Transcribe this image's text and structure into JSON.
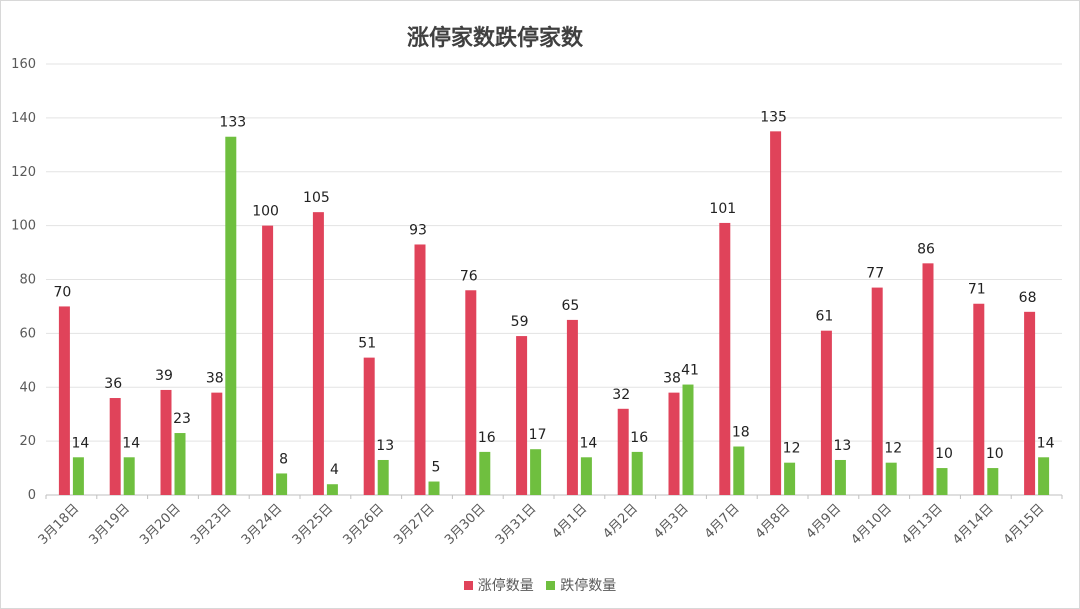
{
  "chart_data": {
    "type": "bar",
    "title": "涨停家数跌停家数",
    "categories": [
      "3月18日",
      "3月19日",
      "3月20日",
      "3月23日",
      "3月24日",
      "3月25日",
      "3月26日",
      "3月27日",
      "3月30日",
      "3月31日",
      "4月1日",
      "4月2日",
      "4月3日",
      "4月7日",
      "4月8日",
      "4月9日",
      "4月10日",
      "4月13日",
      "4月14日",
      "4月15日"
    ],
    "series": [
      {
        "name": "涨停数量",
        "color": "#e0435a",
        "values": [
          70,
          36,
          39,
          38,
          100,
          105,
          51,
          93,
          76,
          59,
          65,
          32,
          38,
          101,
          135,
          61,
          77,
          86,
          71,
          68
        ]
      },
      {
        "name": "跌停数量",
        "color": "#6fbf3f",
        "values": [
          14,
          14,
          23,
          133,
          8,
          4,
          13,
          5,
          16,
          17,
          14,
          16,
          41,
          18,
          12,
          13,
          12,
          10,
          10,
          14
        ]
      }
    ],
    "ylim": [
      0,
      160
    ],
    "yticks": [
      0,
      20,
      40,
      60,
      80,
      100,
      120,
      140,
      160
    ],
    "grid": true,
    "legend": "bottom"
  }
}
